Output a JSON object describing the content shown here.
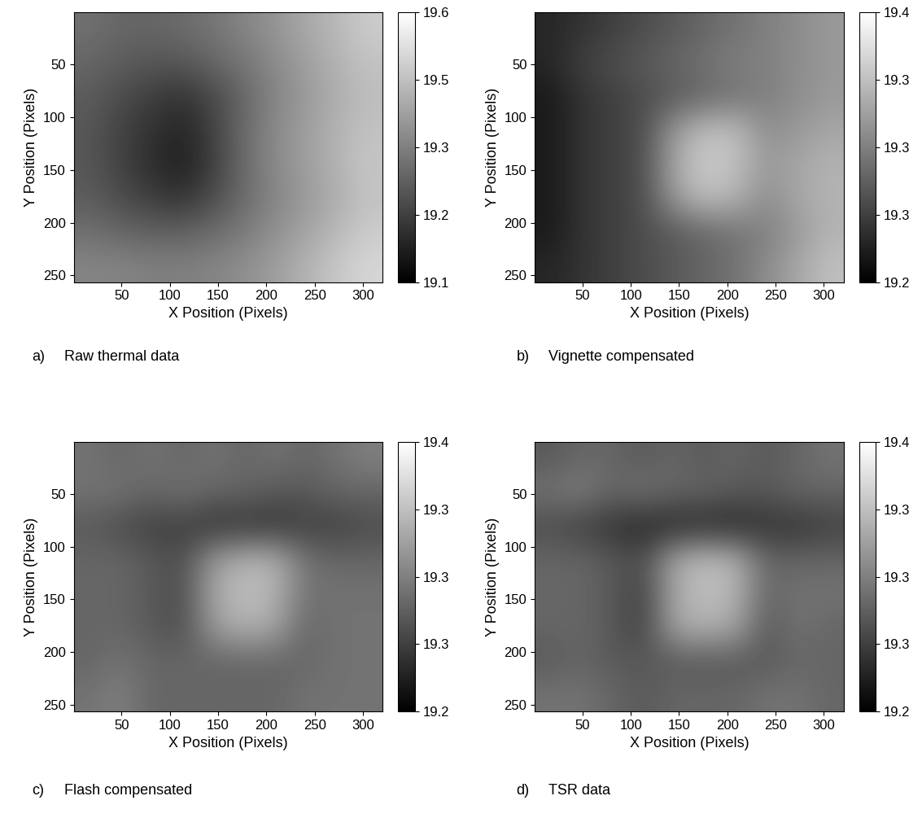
{
  "chart_data": [
    {
      "type": "heatmap",
      "label": "a)",
      "caption": "Raw thermal data",
      "x_label": "X Position (Pixels)",
      "y_label": "Y Position (Pixels)",
      "xlim": [
        0.5,
        320.5
      ],
      "ylim": [
        256.5,
        0.5
      ],
      "xticks": [
        50,
        100,
        150,
        200,
        250,
        300
      ],
      "yticks": [
        50,
        100,
        150,
        200,
        250
      ],
      "cells": [
        [
          19.32,
          19.3,
          19.3,
          19.31,
          19.33,
          19.36,
          19.39,
          19.43,
          19.46,
          19.5
        ],
        [
          19.3,
          19.28,
          19.27,
          19.27,
          19.3,
          19.33,
          19.37,
          19.41,
          19.45,
          19.48
        ],
        [
          19.28,
          19.25,
          19.22,
          19.2,
          19.24,
          19.3,
          19.36,
          19.4,
          19.44,
          19.47
        ],
        [
          19.27,
          19.23,
          19.2,
          19.17,
          19.23,
          19.31,
          19.37,
          19.41,
          19.45,
          19.48
        ],
        [
          19.27,
          19.23,
          19.19,
          19.16,
          19.22,
          19.31,
          19.37,
          19.41,
          19.45,
          19.49
        ],
        [
          19.28,
          19.25,
          19.22,
          19.2,
          19.25,
          19.31,
          19.36,
          19.4,
          19.44,
          19.48
        ],
        [
          19.32,
          19.3,
          19.29,
          19.29,
          19.31,
          19.34,
          19.38,
          19.42,
          19.46,
          19.5
        ],
        [
          19.36,
          19.36,
          19.35,
          19.35,
          19.36,
          19.38,
          19.41,
          19.45,
          19.49,
          19.52
        ]
      ],
      "colorbar_range": [
        19.1,
        19.6
      ],
      "colorbar_ticks": [
        {
          "value": 19.1,
          "label": "19.1"
        },
        {
          "value": 19.225,
          "label": "19.2"
        },
        {
          "value": 19.35,
          "label": "19.3"
        },
        {
          "value": 19.475,
          "label": "19.5"
        },
        {
          "value": 19.6,
          "label": "19.6"
        }
      ]
    },
    {
      "type": "heatmap",
      "label": "b)",
      "caption": "Vignette compensated",
      "x_label": "X Position (Pixels)",
      "y_label": "Y Position (Pixels)",
      "xlim": [
        0.5,
        320.5
      ],
      "ylim": [
        256.5,
        0.5
      ],
      "xticks": [
        50,
        100,
        150,
        200,
        250,
        300
      ],
      "yticks": [
        50,
        100,
        150,
        200,
        250
      ],
      "cells": [
        [
          19.23,
          19.24,
          19.25,
          19.26,
          19.27,
          19.28,
          19.29,
          19.3,
          19.31,
          19.32
        ],
        [
          19.23,
          19.25,
          19.26,
          19.27,
          19.28,
          19.29,
          19.3,
          19.3,
          19.31,
          19.32
        ],
        [
          19.22,
          19.24,
          19.25,
          19.26,
          19.27,
          19.28,
          19.29,
          19.3,
          19.31,
          19.32
        ],
        [
          19.22,
          19.24,
          19.25,
          19.26,
          19.32,
          19.35,
          19.35,
          19.31,
          19.32,
          19.33
        ],
        [
          19.22,
          19.24,
          19.25,
          19.26,
          19.33,
          19.36,
          19.35,
          19.32,
          19.33,
          19.34
        ],
        [
          19.22,
          19.24,
          19.25,
          19.26,
          19.32,
          19.35,
          19.34,
          19.31,
          19.33,
          19.34
        ],
        [
          19.22,
          19.24,
          19.25,
          19.26,
          19.27,
          19.28,
          19.29,
          19.3,
          19.32,
          19.34
        ],
        [
          19.23,
          19.24,
          19.25,
          19.26,
          19.27,
          19.28,
          19.29,
          19.31,
          19.33,
          19.35
        ]
      ],
      "colorbar_range": [
        19.2,
        19.4
      ],
      "colorbar_ticks": [
        {
          "value": 19.2,
          "label": "19.2"
        },
        {
          "value": 19.25,
          "label": "19.3"
        },
        {
          "value": 19.3,
          "label": "19.3"
        },
        {
          "value": 19.35,
          "label": "19.3"
        },
        {
          "value": 19.4,
          "label": "19.4"
        }
      ]
    },
    {
      "type": "heatmap",
      "label": "c)",
      "caption": "Flash compensated",
      "x_label": "X Position (Pixels)",
      "y_label": "Y Position (Pixels)",
      "xlim": [
        0.5,
        320.5
      ],
      "ylim": [
        256.5,
        0.5
      ],
      "xticks": [
        50,
        100,
        150,
        200,
        250,
        300
      ],
      "yticks": [
        50,
        100,
        150,
        200,
        250
      ],
      "cells": [
        [
          19.29,
          19.28,
          19.29,
          19.28,
          19.29,
          19.28,
          19.29,
          19.28,
          19.29,
          19.3
        ],
        [
          19.29,
          19.29,
          19.28,
          19.29,
          19.28,
          19.28,
          19.27,
          19.27,
          19.28,
          19.28
        ],
        [
          19.27,
          19.26,
          19.25,
          19.25,
          19.24,
          19.24,
          19.24,
          19.25,
          19.25,
          19.26
        ],
        [
          19.28,
          19.28,
          19.27,
          19.26,
          19.32,
          19.34,
          19.34,
          19.29,
          19.28,
          19.28
        ],
        [
          19.28,
          19.28,
          19.27,
          19.26,
          19.33,
          19.35,
          19.34,
          19.29,
          19.29,
          19.29
        ],
        [
          19.28,
          19.28,
          19.27,
          19.26,
          19.32,
          19.34,
          19.33,
          19.28,
          19.29,
          19.29
        ],
        [
          19.28,
          19.29,
          19.28,
          19.28,
          19.28,
          19.28,
          19.28,
          19.28,
          19.29,
          19.29
        ],
        [
          19.29,
          19.3,
          19.28,
          19.28,
          19.28,
          19.28,
          19.28,
          19.29,
          19.29,
          19.29
        ]
      ],
      "colorbar_range": [
        19.2,
        19.4
      ],
      "colorbar_ticks": [
        {
          "value": 19.2,
          "label": "19.2"
        },
        {
          "value": 19.25,
          "label": "19.3"
        },
        {
          "value": 19.3,
          "label": "19.3"
        },
        {
          "value": 19.35,
          "label": "19.3"
        },
        {
          "value": 19.4,
          "label": "19.4"
        }
      ]
    },
    {
      "type": "heatmap",
      "label": "d)",
      "caption": "TSR data",
      "x_label": "X Position (Pixels)",
      "y_label": "Y Position (Pixels)",
      "xlim": [
        0.5,
        320.5
      ],
      "ylim": [
        256.5,
        0.5
      ],
      "xticks": [
        50,
        100,
        150,
        200,
        250,
        300
      ],
      "yticks": [
        50,
        100,
        150,
        200,
        250
      ],
      "cells": [
        [
          19.27,
          19.28,
          19.28,
          19.27,
          19.28,
          19.27,
          19.28,
          19.27,
          19.28,
          19.29
        ],
        [
          19.29,
          19.3,
          19.28,
          19.29,
          19.28,
          19.28,
          19.27,
          19.27,
          19.28,
          19.28
        ],
        [
          19.26,
          19.25,
          19.24,
          19.23,
          19.23,
          19.23,
          19.23,
          19.24,
          19.24,
          19.25
        ],
        [
          19.28,
          19.28,
          19.27,
          19.26,
          19.33,
          19.35,
          19.34,
          19.28,
          19.28,
          19.28
        ],
        [
          19.28,
          19.28,
          19.27,
          19.25,
          19.33,
          19.35,
          19.34,
          19.28,
          19.29,
          19.29
        ],
        [
          19.28,
          19.28,
          19.27,
          19.25,
          19.33,
          19.34,
          19.33,
          19.27,
          19.29,
          19.28
        ],
        [
          19.27,
          19.28,
          19.27,
          19.27,
          19.27,
          19.27,
          19.27,
          19.27,
          19.28,
          19.28
        ],
        [
          19.29,
          19.29,
          19.28,
          19.27,
          19.28,
          19.28,
          19.28,
          19.29,
          19.29,
          19.28
        ]
      ],
      "colorbar_range": [
        19.2,
        19.4
      ],
      "colorbar_ticks": [
        {
          "value": 19.2,
          "label": "19.2"
        },
        {
          "value": 19.25,
          "label": "19.3"
        },
        {
          "value": 19.3,
          "label": "19.3"
        },
        {
          "value": 19.35,
          "label": "19.3"
        },
        {
          "value": 19.4,
          "label": "19.4"
        }
      ]
    }
  ]
}
